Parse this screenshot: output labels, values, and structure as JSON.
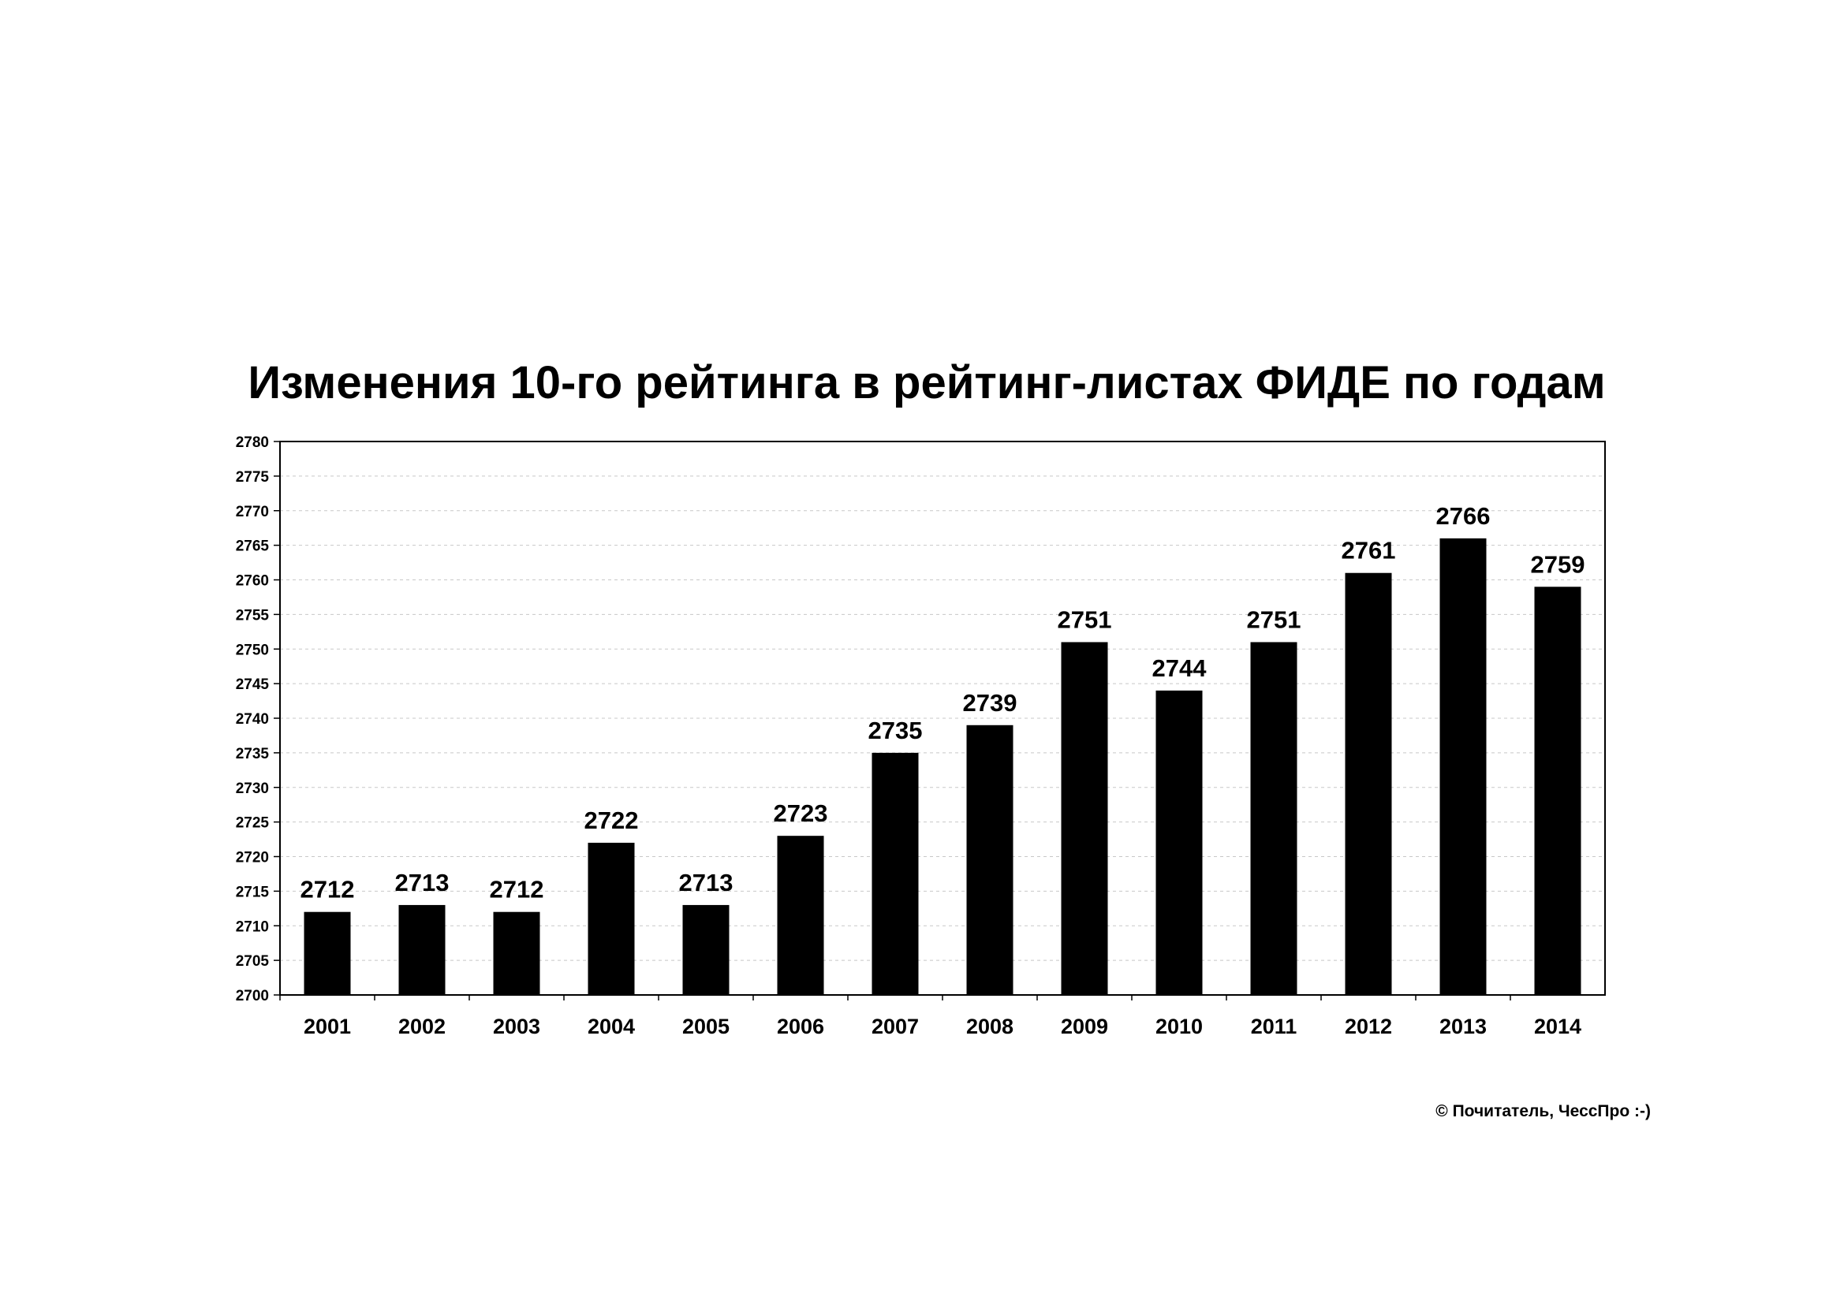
{
  "chart_data": {
    "type": "bar",
    "title": "Изменения 10-го рейтинга в рейтинг-листах ФИДЕ по годам",
    "xlabel": "",
    "ylabel": "",
    "categories": [
      "2001",
      "2002",
      "2003",
      "2004",
      "2005",
      "2006",
      "2007",
      "2008",
      "2009",
      "2010",
      "2011",
      "2012",
      "2013",
      "2014"
    ],
    "values": [
      2712,
      2713,
      2712,
      2722,
      2713,
      2723,
      2735,
      2739,
      2751,
      2744,
      2751,
      2761,
      2766,
      2759
    ],
    "data_labels": [
      "2712",
      "2713",
      "2712",
      "2722",
      "2713",
      "2723",
      "2735",
      "2739",
      "2751",
      "2744",
      "2751",
      "2761",
      "2766",
      "2759"
    ],
    "ylim": [
      2700,
      2780
    ],
    "yticks": [
      "2700",
      "2705",
      "2710",
      "2715",
      "2720",
      "2725",
      "2730",
      "2735",
      "2740",
      "2745",
      "2750",
      "2755",
      "2760",
      "2765",
      "2770",
      "2775",
      "2780"
    ],
    "grid": true,
    "legend": "none",
    "bar_color": "#000000"
  },
  "footer": {
    "copyright": "© Почитатель, ЧессПро :-)"
  }
}
